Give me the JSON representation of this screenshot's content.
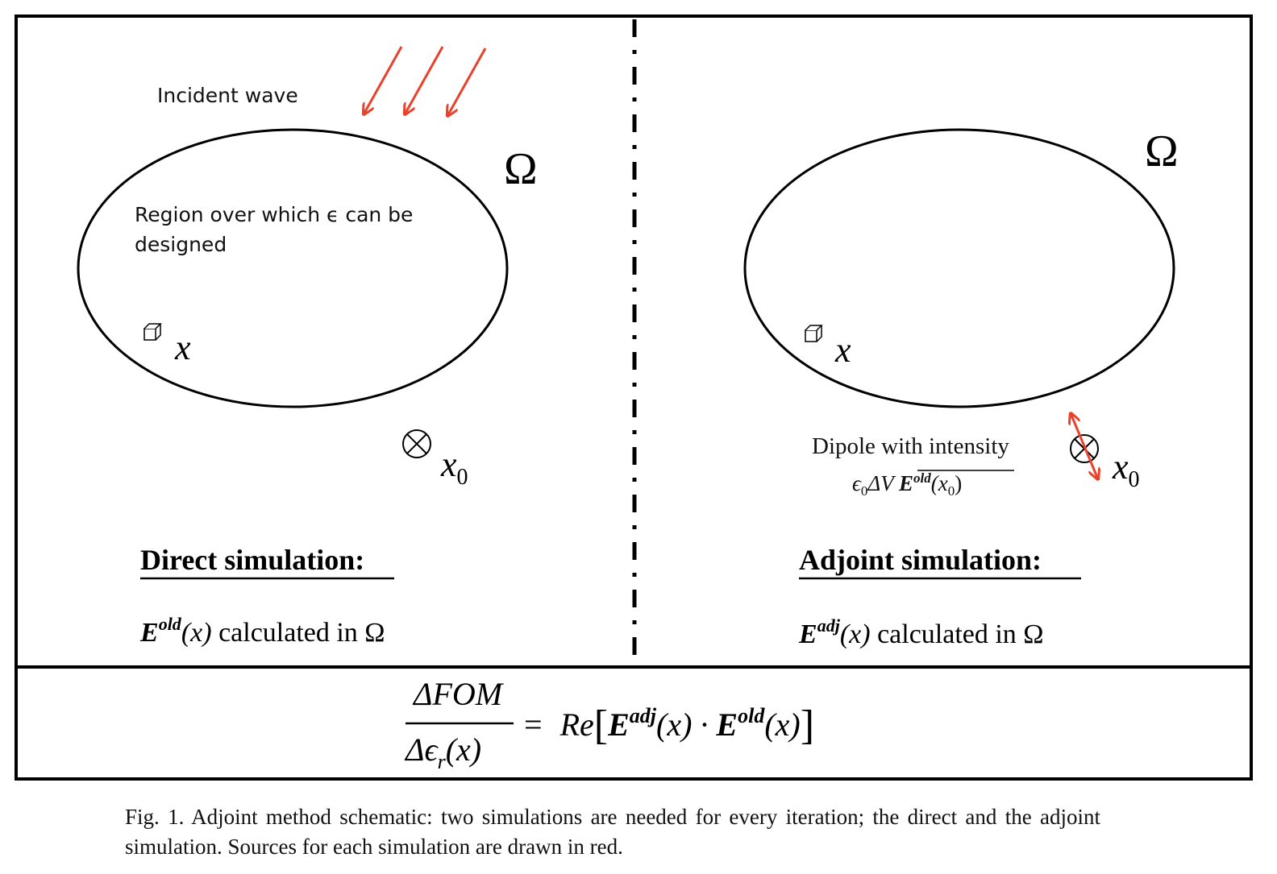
{
  "left_panel": {
    "incident_label": "Incident wave",
    "region_label_line1": "Region over which ϵ can be",
    "region_label_line2": "designed",
    "omega": "Ω",
    "point_x": "x",
    "point_x0": "x",
    "point_x0_sub": "0",
    "heading": "Direct simulation:",
    "field_symbol": "E",
    "field_sup": "old",
    "field_arg": "(x)",
    "field_text": " calculated in Ω"
  },
  "right_panel": {
    "omega": "Ω",
    "point_x": "x",
    "point_x0": "x",
    "point_x0_sub": "0",
    "dipole_label": "Dipole with intensity",
    "dipole_formula_prefix": "ϵ",
    "dipole_formula_sub": "0",
    "dipole_formula_mid": "ΔV ",
    "dipole_formula_E": "E",
    "dipole_formula_sup": "old",
    "dipole_formula_arg": "(x",
    "dipole_formula_arg_sub": "0",
    "dipole_formula_close": ")",
    "heading": "Adjoint simulation:",
    "field_symbol": "E",
    "field_sup": "adj",
    "field_arg": "(x)",
    "field_text": " calculated in Ω"
  },
  "equation": {
    "numerator": "ΔFOM",
    "denominator": "Δϵ",
    "denominator_sub": "r",
    "denominator_arg": "(x)",
    "equals": "=",
    "re": "Re",
    "lbracket": "[",
    "e1": "E",
    "e1_sup": "adj",
    "arg1": "(x) · ",
    "e2": "E",
    "e2_sup": "old",
    "arg2": "(x)",
    "rbracket": "]"
  },
  "caption": "Fig. 1. Adjoint method schematic: two simulations are needed for every iteration; the direct and the adjoint simulation. Sources for each simulation are drawn in red.",
  "colors": {
    "source": "#e8412c",
    "line": "#000000"
  }
}
